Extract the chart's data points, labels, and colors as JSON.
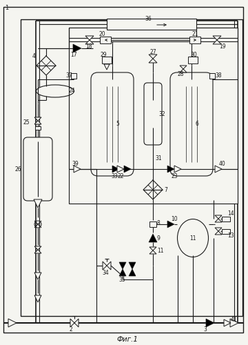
{
  "title": "Фиг.1",
  "bg_color": "#f5f5f0",
  "line_color": "#1a1a1a",
  "lw": 0.8,
  "fs": 5.5
}
